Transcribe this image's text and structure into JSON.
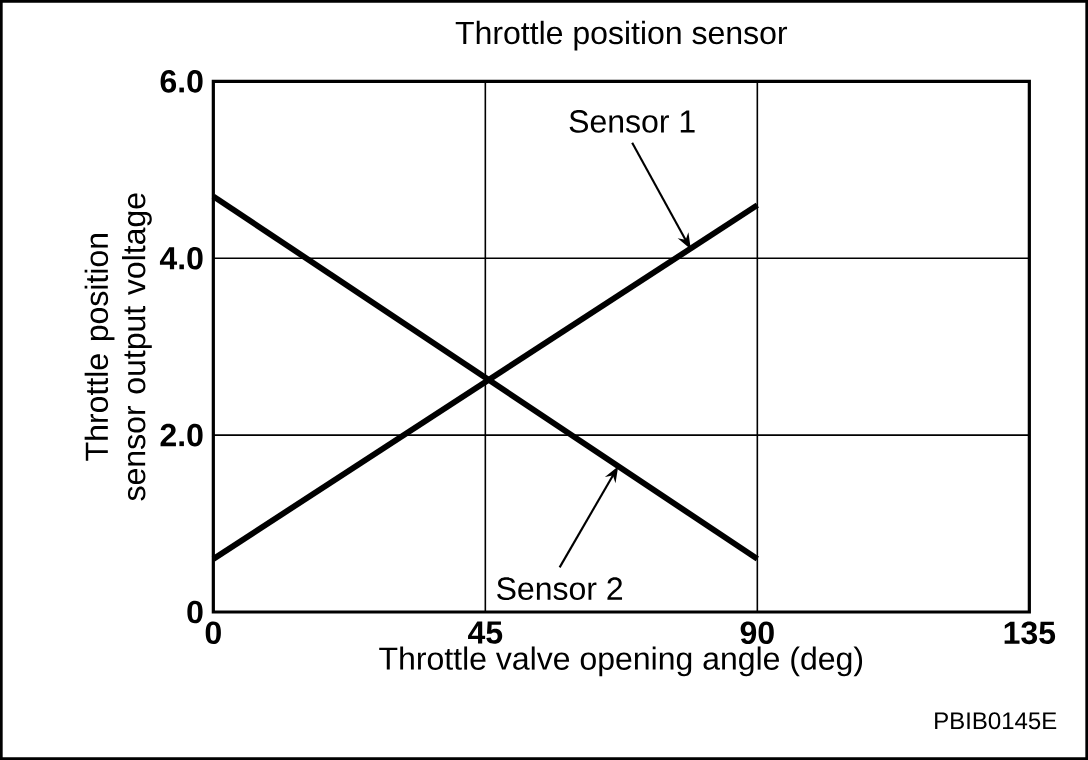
{
  "chart_data": {
    "type": "line",
    "title": "Throttle position sensor",
    "xlabel": "Throttle valve opening angle (deg)",
    "ylabel": "Throttle position sensor output voltage",
    "x": [
      0,
      90
    ],
    "series": [
      {
        "color": "#000000",
        "values": [
          0.6,
          4.6
        ]
      },
      {
        "color": "#000000",
        "values": [
          4.7,
          0.6
        ]
      }
    ],
    "xlim": [
      0,
      135
    ],
    "ylim": [
      0,
      6
    ],
    "xticks": [
      0,
      45,
      90,
      135
    ],
    "yticks": [
      0,
      {
        "value": 2,
        "label": "2.0"
      },
      {
        "value": 4,
        "label": "4.0"
      },
      {
        "value": 6,
        "label": "6.0"
      }
    ],
    "grid": true,
    "marker": "none",
    "line_style": "solid",
    "annotations": [
      {
        "text": "Sensor 1",
        "x": 79,
        "y": 4.1
      },
      {
        "text": "Sensor 2",
        "x": 67,
        "y": 1.65
      },
      "PBIB0145E"
    ]
  }
}
